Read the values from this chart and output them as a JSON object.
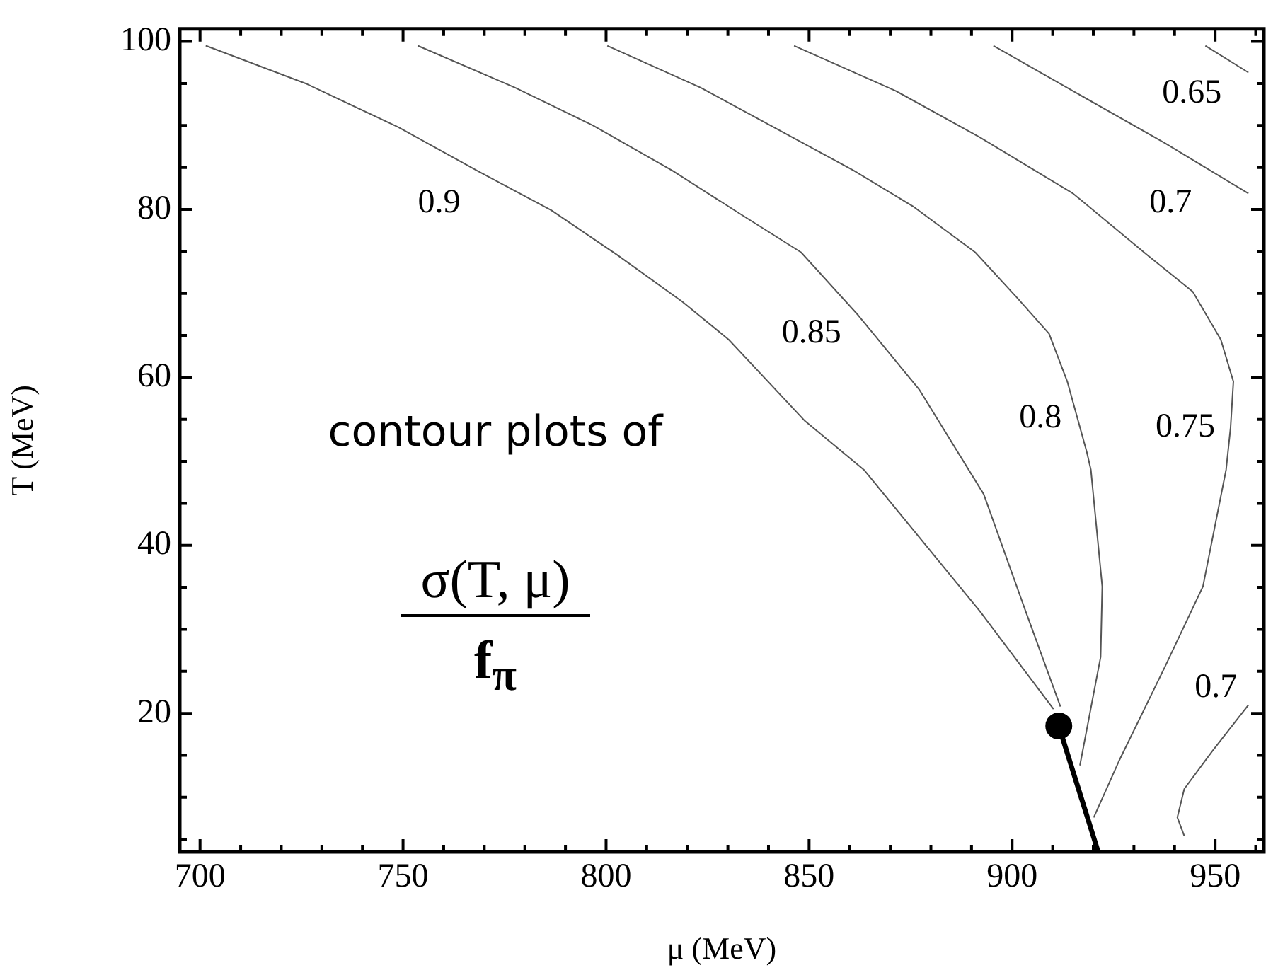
{
  "chart_data": {
    "type": "line",
    "xlabel": "μ (MeV)",
    "ylabel": "T (MeV)",
    "xlim": [
      695,
      962
    ],
    "ylim": [
      3.5,
      101.5
    ],
    "xticks": [
      700,
      {
        "value": 710,
        "label": null
      },
      {
        "value": 720,
        "label": null
      },
      {
        "value": 730,
        "label": null
      },
      {
        "value": 740,
        "label": null
      },
      750,
      {
        "value": 760,
        "label": null
      },
      {
        "value": 770,
        "label": null
      },
      {
        "value": 780,
        "label": null
      },
      {
        "value": 790,
        "label": null
      },
      800,
      {
        "value": 810,
        "label": null
      },
      {
        "value": 820,
        "label": null
      },
      {
        "value": 830,
        "label": null
      },
      {
        "value": 840,
        "label": null
      },
      850,
      {
        "value": 860,
        "label": null
      },
      {
        "value": 870,
        "label": null
      },
      {
        "value": 880,
        "label": null
      },
      {
        "value": 890,
        "label": null
      },
      900,
      {
        "value": 910,
        "label": null
      },
      {
        "value": 920,
        "label": null
      },
      {
        "value": 930,
        "label": null
      },
      {
        "value": 940,
        "label": null
      },
      950,
      {
        "value": 960,
        "label": null
      }
    ],
    "yticks": [
      {
        "value": 5,
        "label": null
      },
      {
        "value": 10,
        "label": null
      },
      {
        "value": 15,
        "label": null
      },
      20,
      {
        "value": 25,
        "label": null
      },
      {
        "value": 30,
        "label": null
      },
      {
        "value": 35,
        "label": null
      },
      40,
      {
        "value": 45,
        "label": null
      },
      {
        "value": 50,
        "label": null
      },
      {
        "value": 55,
        "label": null
      },
      60,
      {
        "value": 65,
        "label": null
      },
      {
        "value": 70,
        "label": null
      },
      {
        "value": 75,
        "label": null
      },
      80,
      {
        "value": 85,
        "label": null
      },
      {
        "value": 90,
        "label": null
      },
      {
        "value": 95,
        "label": null
      },
      100
    ],
    "grid": false,
    "legend": false,
    "marker": "none",
    "line_style": "solid",
    "series": [
      {
        "name": "0.9",
        "color": "#555555",
        "x": [
          701.4,
          726,
          748.8,
          768.3,
          786.5,
          802.7,
          818.8,
          830.2,
          849,
          863.5,
          892,
          910.2
        ],
        "values": [
          99.5,
          95.0,
          89.8,
          84.6,
          79.9,
          74.6,
          69.0,
          64.5,
          54.8,
          49.0,
          32.2,
          20.5
        ]
      },
      {
        "name": "0.85",
        "color": "#555555",
        "x": [
          753.6,
          777.6,
          796.8,
          816.4,
          832.6,
          848.0,
          862.1,
          877.2,
          893.0,
          903.3,
          911.9
        ],
        "values": [
          99.5,
          94.5,
          90.0,
          84.6,
          79.6,
          74.9,
          67.4,
          58.5,
          46.1,
          32.2,
          20.8
        ]
      },
      {
        "name": "0.8",
        "color": "#555555",
        "x": [
          800.3,
          823.3,
          861.1,
          875.8,
          890.9,
          901.2,
          909.1,
          913.6,
          918.4,
          919.4,
          922.2,
          921.8,
          916.7
        ],
        "values": [
          99.5,
          94.5,
          84.6,
          80.3,
          74.9,
          69.5,
          65.2,
          59.5,
          51.1,
          49.0,
          35.1,
          26.7,
          13.8
        ]
      },
      {
        "name": "0.75",
        "color": "#555555",
        "x": [
          846.3,
          871.4,
          892.0,
          915.0,
          933.2,
          944.5,
          951.4,
          954.5,
          953.8,
          952.7,
          947,
          937.6,
          926.3,
          920.1
        ],
        "values": [
          99.5,
          94.1,
          88.6,
          81.9,
          74.6,
          70.2,
          64.5,
          59.5,
          54.0,
          49.0,
          35.1,
          25.5,
          14.3,
          7.6
        ]
      },
      {
        "name": "0.7",
        "color": "#555555",
        "x": [
          895.4,
          915.0,
          937.6,
          958.2
        ],
        "values": [
          99.5,
          94.1,
          87.9,
          81.9
        ]
      },
      {
        "name": "0.65",
        "color": "#555555",
        "x": [
          947.6,
          958.2
        ],
        "values": [
          99.5,
          96.3
        ]
      },
      {
        "name": "0.7",
        "color": "#555555",
        "x": [
          958.2,
          949.3,
          942.4,
          940.7,
          942.4
        ],
        "values": [
          21.0,
          15.5,
          11.0,
          7.6,
          5.4
        ]
      },
      {
        "color": "#000000",
        "x": [
          911.5,
          921.2
        ],
        "values": [
          18.5,
          3.5
        ]
      },
      {
        "type": "scatter",
        "marker": "circle",
        "color": "#000000",
        "x": [
          911.5
        ],
        "values": [
          18.5
        ]
      }
    ],
    "annotations": [
      "contour plots of",
      "σ(T, μ)",
      "f$_{π}$"
    ]
  }
}
